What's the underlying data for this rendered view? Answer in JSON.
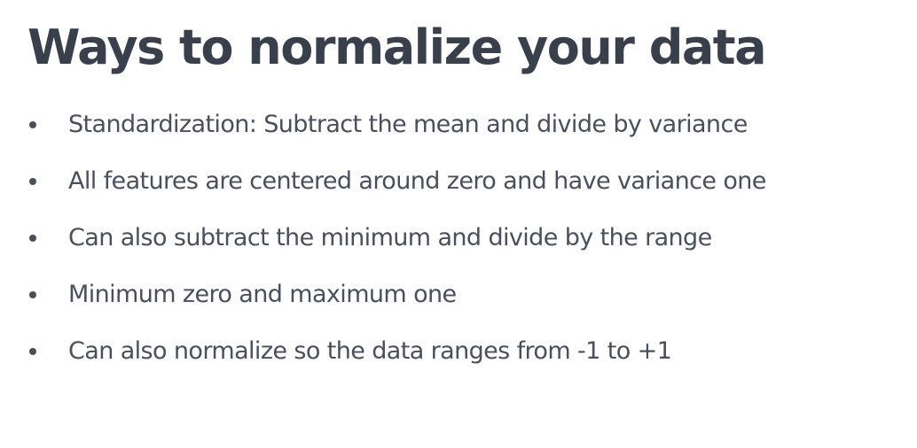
{
  "title": "Ways to normalize your data",
  "bullets": [
    "Standardization: Subtract the mean and divide by variance",
    "All features are centered around zero and have variance one",
    "Can also subtract the minimum and divide by the range",
    "Minimum zero and maximum one",
    "Can also normalize so the data ranges from -1 to +1"
  ],
  "colors": {
    "title": "#3a3f4c",
    "body_text": "#4a4f5c",
    "background": "#ffffff"
  }
}
